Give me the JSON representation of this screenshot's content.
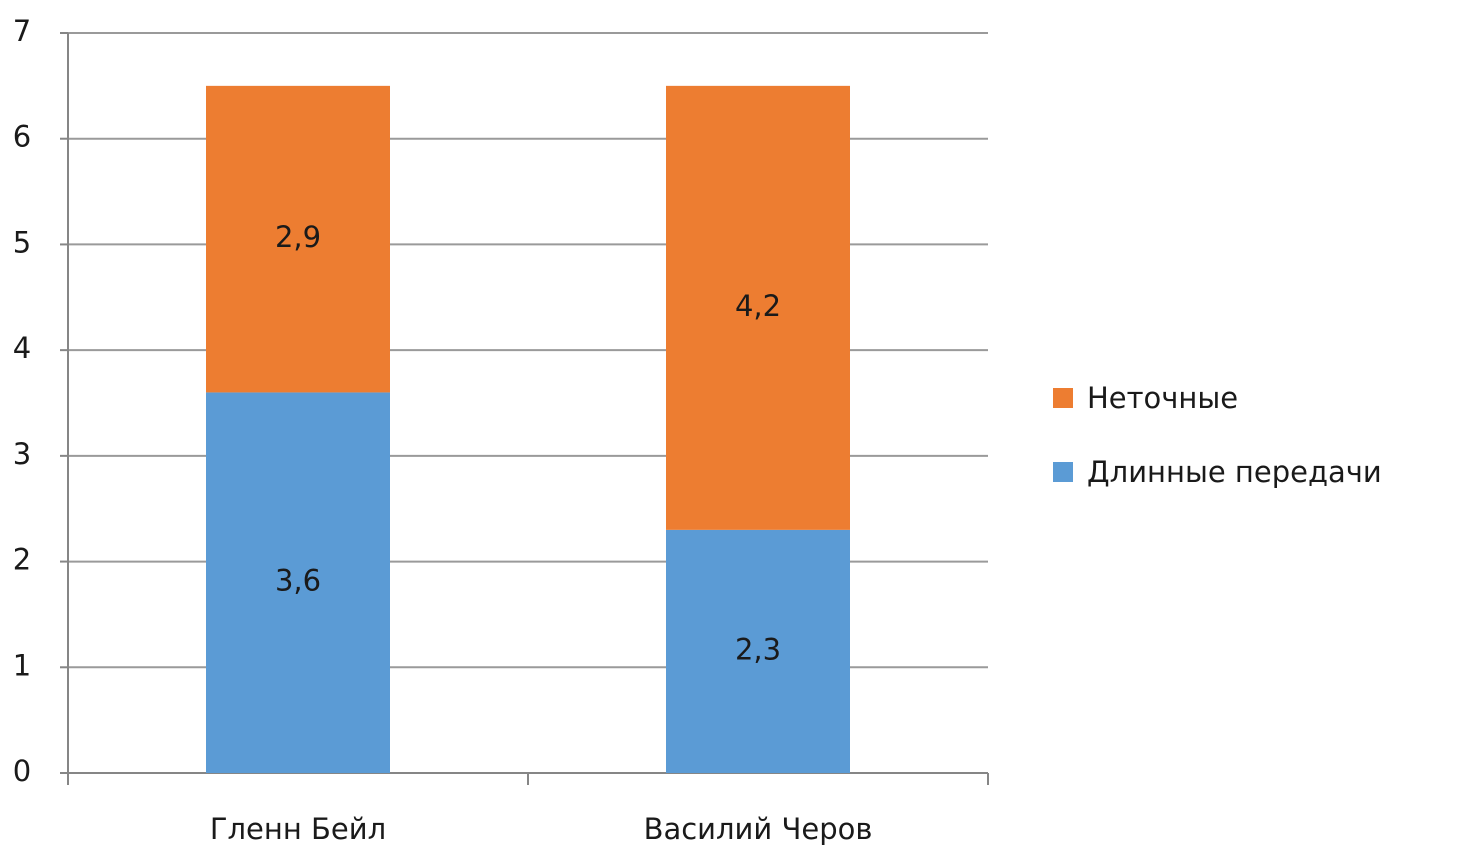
{
  "chart_data": {
    "type": "stacked_bar",
    "categories": [
      "Гленн Бейл",
      "Василий Черов"
    ],
    "series": [
      {
        "name": "Длинные передачи",
        "color": "#5b9bd5",
        "values": [
          3.6,
          2.3
        ],
        "value_labels": [
          "3,6",
          "2,3"
        ]
      },
      {
        "name": "Неточные",
        "color": "#ed7d31",
        "values": [
          2.9,
          4.2
        ],
        "value_labels": [
          "2,9",
          "4,2"
        ]
      }
    ],
    "ylim": [
      0,
      7
    ],
    "yticks": [
      0,
      1,
      2,
      3,
      4,
      5,
      6,
      7
    ],
    "grid": true,
    "legend": "right"
  }
}
